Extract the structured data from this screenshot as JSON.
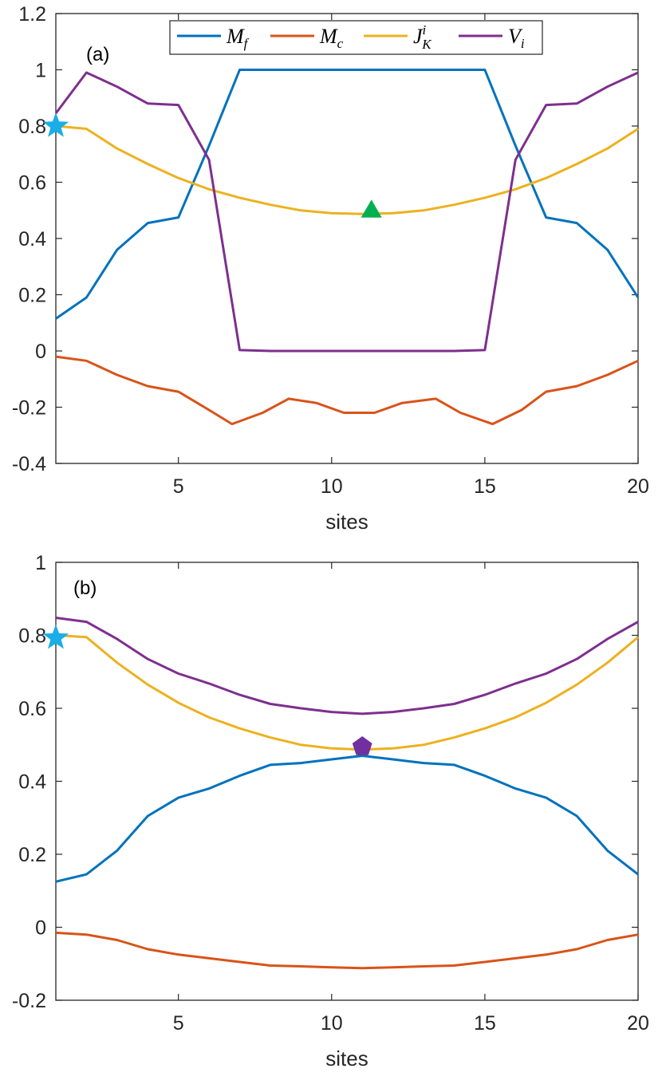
{
  "colors": {
    "Mf": "#0072BD",
    "Mc": "#D95319",
    "JK": "#EDB120",
    "Vi": "#7E2F8E",
    "star": "#1AAEE6",
    "triangle": "#00B050",
    "pentagon": "#7030A0",
    "axis": "#262626"
  },
  "legend": {
    "Mf": {
      "main": "M",
      "sub": "f",
      "sup": ""
    },
    "Mc": {
      "main": "M",
      "sub": "c",
      "sup": ""
    },
    "JK": {
      "main": "J",
      "sub": "K",
      "sup": "i"
    },
    "Vi": {
      "main": "V",
      "sub": "i",
      "sup": ""
    }
  },
  "chart_data": [
    {
      "type": "line",
      "panel_label": "(a)",
      "xlabel": "sites",
      "ylabel": "",
      "xlim": [
        1,
        20
      ],
      "ylim": [
        -0.4,
        1.2
      ],
      "xticks": [
        5,
        10,
        15,
        20
      ],
      "yticks": [
        -0.4,
        -0.2,
        0,
        0.2,
        0.4,
        0.6,
        0.8,
        1,
        1.2
      ],
      "ytick_labels": [
        "-0.4",
        "-0.2",
        "0",
        "0.2",
        "0.4",
        "0.6",
        "0.8",
        "1",
        "1.2"
      ],
      "legend_position": "top-center",
      "series": [
        {
          "key": "Mf",
          "x": [
            1,
            2,
            3,
            4,
            5,
            6,
            7,
            8,
            9,
            10,
            11,
            12,
            13,
            14,
            15,
            16,
            17,
            18,
            19,
            20
          ],
          "values": [
            0.115,
            0.19,
            0.36,
            0.455,
            0.475,
            0.73,
            1.0,
            1.0,
            1.0,
            1.0,
            1.0,
            1.0,
            1.0,
            1.0,
            1.0,
            0.73,
            0.475,
            0.455,
            0.36,
            0.19
          ]
        },
        {
          "key": "Mc",
          "x": [
            1,
            2,
            3,
            4,
            5,
            6,
            6.75,
            7.75,
            8.6,
            9.5,
            10.4,
            11.4,
            12.3,
            13.4,
            14.2,
            15.25,
            16.2,
            17,
            18,
            19,
            20
          ],
          "values": [
            -0.02,
            -0.035,
            -0.085,
            -0.125,
            -0.145,
            -0.21,
            -0.26,
            -0.22,
            -0.17,
            -0.185,
            -0.22,
            -0.22,
            -0.185,
            -0.17,
            -0.22,
            -0.26,
            -0.21,
            -0.145,
            -0.125,
            -0.085,
            -0.035
          ]
        },
        {
          "key": "JK",
          "x": [
            1,
            2,
            3,
            4,
            5,
            6,
            7,
            8,
            9,
            10,
            11,
            12,
            13,
            14,
            15,
            16,
            17,
            18,
            19,
            20
          ],
          "values": [
            0.8,
            0.79,
            0.72,
            0.665,
            0.615,
            0.575,
            0.545,
            0.52,
            0.5,
            0.49,
            0.487,
            0.49,
            0.5,
            0.52,
            0.545,
            0.575,
            0.615,
            0.665,
            0.72,
            0.79
          ]
        },
        {
          "key": "Vi",
          "x": [
            1,
            2,
            3,
            4,
            5,
            6,
            7,
            8,
            9,
            10,
            11,
            12,
            13,
            14,
            15,
            16,
            17,
            18,
            19,
            20
          ],
          "values": [
            0.845,
            0.99,
            0.94,
            0.88,
            0.875,
            0.68,
            0.003,
            0.0,
            0.0,
            0.0,
            0.0,
            0.0,
            0.0,
            0.0,
            0.003,
            0.68,
            0.875,
            0.88,
            0.94,
            0.99
          ]
        }
      ],
      "markers": [
        {
          "shape": "star",
          "x": 1,
          "y": 0.8
        },
        {
          "shape": "triangle",
          "x": 11.3,
          "y": 0.487
        }
      ]
    },
    {
      "type": "line",
      "panel_label": "(b)",
      "xlabel": "sites",
      "ylabel": "",
      "xlim": [
        1,
        20
      ],
      "ylim": [
        -0.2,
        1.0
      ],
      "xticks": [
        5,
        10,
        15,
        20
      ],
      "yticks": [
        -0.2,
        0,
        0.2,
        0.4,
        0.6,
        0.8,
        1
      ],
      "ytick_labels": [
        "-0.2",
        "0",
        "0.2",
        "0.4",
        "0.6",
        "0.8",
        "1"
      ],
      "legend_position": "none",
      "series": [
        {
          "key": "Mf",
          "x": [
            1,
            2,
            3,
            4,
            5,
            6,
            7,
            8,
            9,
            10,
            11,
            12,
            13,
            14,
            15,
            16,
            17,
            18,
            19,
            20
          ],
          "values": [
            0.125,
            0.145,
            0.21,
            0.305,
            0.355,
            0.38,
            0.415,
            0.445,
            0.45,
            0.46,
            0.47,
            0.46,
            0.45,
            0.445,
            0.415,
            0.38,
            0.355,
            0.305,
            0.21,
            0.145
          ]
        },
        {
          "key": "Mc",
          "x": [
            1,
            2,
            3,
            4,
            5,
            6,
            7,
            8,
            9,
            10,
            11,
            12,
            13,
            14,
            15,
            16,
            17,
            18,
            19,
            20
          ],
          "values": [
            -0.015,
            -0.02,
            -0.035,
            -0.06,
            -0.075,
            -0.085,
            -0.095,
            -0.105,
            -0.107,
            -0.11,
            -0.112,
            -0.11,
            -0.107,
            -0.105,
            -0.095,
            -0.085,
            -0.075,
            -0.06,
            -0.035,
            -0.02
          ]
        },
        {
          "key": "JK",
          "x": [
            1,
            2,
            3,
            4,
            5,
            6,
            7,
            8,
            9,
            10,
            11,
            12,
            13,
            14,
            15,
            16,
            17,
            18,
            19,
            20
          ],
          "values": [
            0.8,
            0.795,
            0.725,
            0.665,
            0.615,
            0.575,
            0.545,
            0.52,
            0.5,
            0.49,
            0.487,
            0.49,
            0.5,
            0.52,
            0.545,
            0.575,
            0.615,
            0.665,
            0.725,
            0.795
          ]
        },
        {
          "key": "Vi",
          "x": [
            1,
            2,
            3,
            4,
            5,
            6,
            7,
            8,
            9,
            10,
            11,
            12,
            13,
            14,
            15,
            16,
            17,
            18,
            19,
            20
          ],
          "values": [
            0.848,
            0.837,
            0.79,
            0.735,
            0.695,
            0.668,
            0.637,
            0.612,
            0.6,
            0.59,
            0.585,
            0.59,
            0.6,
            0.612,
            0.637,
            0.668,
            0.695,
            0.735,
            0.79,
            0.837
          ]
        }
      ],
      "markers": [
        {
          "shape": "star",
          "x": 1,
          "y": 0.793
        },
        {
          "shape": "pentagon",
          "x": 11,
          "y": 0.495
        }
      ]
    }
  ]
}
